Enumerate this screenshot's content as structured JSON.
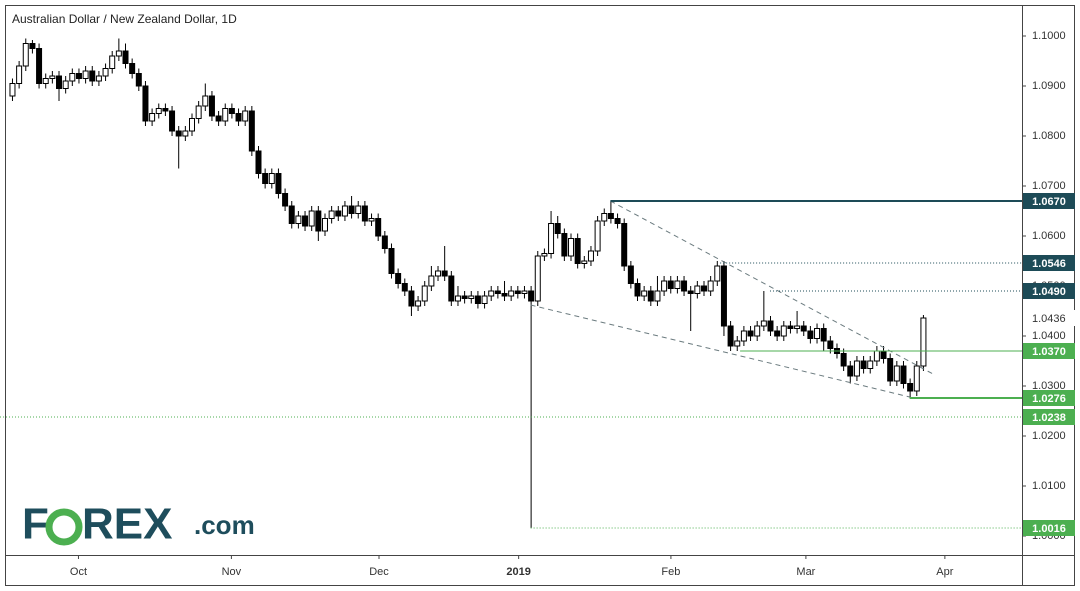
{
  "chart_data": {
    "type": "candlestick",
    "title": "Australian Dollar / New Zealand Dollar, 1D",
    "brand": [
      "F",
      "O",
      "REX",
      ".com"
    ],
    "xlim": [
      -1.8,
      151.9
    ],
    "xticks": [
      {
        "value": 10,
        "label": "Oct"
      },
      {
        "value": 33,
        "label": "Nov"
      },
      {
        "value": 55.2,
        "label": "Dec"
      },
      {
        "value": 76.2,
        "label": "2019"
      },
      {
        "value": 99.1,
        "label": "Feb"
      },
      {
        "value": 119.4,
        "label": "Mar"
      },
      {
        "value": 140.3,
        "label": "Apr"
      }
    ],
    "ylim": [
      0.9962,
      1.1062
    ],
    "yticks": [
      {
        "value": 1.1,
        "label": "1.1000"
      },
      {
        "value": 1.09,
        "label": "1.0900"
      },
      {
        "value": 1.08,
        "label": "1.0800"
      },
      {
        "value": 1.07,
        "label": "1.0700"
      },
      {
        "value": 1.06,
        "label": "1.0600"
      },
      {
        "value": 1.05,
        "label": "1.0500"
      },
      {
        "value": 1.04,
        "label": "1.0400"
      },
      {
        "value": 1.03,
        "label": "1.0300"
      },
      {
        "value": 1.02,
        "label": "1.0200"
      },
      {
        "value": 1.01,
        "label": "1.0100"
      },
      {
        "value": 1.0,
        "label": "1.0000"
      }
    ],
    "up_color": "#ffffff",
    "down_color": "#000000",
    "open": [
      1.088,
      1.0905,
      1.094,
      1.0985,
      1.0975,
      1.0905,
      1.0915,
      1.092,
      1.0895,
      1.091,
      1.0925,
      1.0915,
      1.093,
      1.091,
      1.092,
      1.0935,
      1.096,
      1.097,
      1.0945,
      1.0925,
      1.09,
      1.083,
      1.0845,
      1.0855,
      1.085,
      1.081,
      1.08,
      1.081,
      1.0835,
      1.086,
      1.088,
      1.084,
      1.083,
      1.0855,
      1.0845,
      1.083,
      1.085,
      1.077,
      1.0725,
      1.0705,
      1.0725,
      1.0685,
      1.066,
      1.0625,
      1.064,
      1.062,
      1.065,
      1.061,
      1.0635,
      1.065,
      1.064,
      1.066,
      1.0645,
      1.066,
      1.063,
      1.0635,
      1.06,
      1.0575,
      1.0525,
      1.0505,
      1.049,
      1.046,
      1.047,
      1.05,
      1.052,
      1.053,
      1.052,
      1.047,
      1.048,
      1.0475,
      1.048,
      1.0465,
      1.048,
      1.049,
      1.0485,
      1.048,
      1.049,
      1.0485,
      1.049,
      1.047,
      1.056,
      1.0565,
      1.0625,
      1.0605,
      1.056,
      1.0595,
      1.0545,
      1.055,
      1.057,
      1.063,
      1.0645,
      1.0635,
      1.0625,
      1.054,
      1.0505,
      1.048,
      1.049,
      1.047,
      1.049,
      1.051,
      1.0495,
      1.051,
      1.049,
      1.0485,
      1.05,
      1.049,
      1.051,
      1.054,
      1.042,
      1.038,
      1.039,
      1.041,
      1.04,
      1.042,
      1.043,
      1.041,
      1.04,
      1.042,
      1.0415,
      1.042,
      1.041,
      1.0395,
      1.0415,
      1.039,
      1.0375,
      1.0365,
      1.034,
      1.032,
      1.035,
      1.0335,
      1.035,
      1.037,
      1.0355,
      1.031,
      1.034,
      1.0305,
      1.029,
      1.034
    ],
    "high": [
      1.0915,
      1.095,
      1.0995,
      1.0992,
      1.0985,
      1.0925,
      1.093,
      1.093,
      1.092,
      1.0935,
      1.0935,
      1.094,
      1.094,
      1.093,
      1.0945,
      1.097,
      1.0995,
      1.0985,
      1.0955,
      1.0935,
      1.091,
      1.0855,
      1.0865,
      1.0865,
      1.086,
      1.082,
      1.082,
      1.0845,
      1.087,
      1.0905,
      1.089,
      1.085,
      1.0865,
      1.0865,
      1.0855,
      1.086,
      1.086,
      1.078,
      1.0735,
      1.0735,
      1.0735,
      1.0695,
      1.067,
      1.065,
      1.065,
      1.066,
      1.066,
      1.0645,
      1.066,
      1.066,
      1.067,
      1.068,
      1.067,
      1.067,
      1.0645,
      1.0645,
      1.061,
      1.0585,
      1.0535,
      1.0515,
      1.05,
      1.048,
      1.051,
      1.054,
      1.054,
      1.058,
      1.053,
      1.05,
      1.049,
      1.049,
      1.049,
      1.049,
      1.05,
      1.05,
      1.051,
      1.05,
      1.05,
      1.05,
      1.05,
      1.057,
      1.0575,
      1.065,
      1.064,
      1.0615,
      1.0605,
      1.0605,
      1.056,
      1.058,
      1.064,
      1.0655,
      1.067,
      1.0645,
      1.0635,
      1.055,
      1.0515,
      1.05,
      1.05,
      1.052,
      1.052,
      1.052,
      1.052,
      1.052,
      1.05,
      1.051,
      1.051,
      1.052,
      1.055,
      1.055,
      1.043,
      1.04,
      1.042,
      1.042,
      1.043,
      1.049,
      1.044,
      1.042,
      1.043,
      1.043,
      1.045,
      1.043,
      1.042,
      1.0425,
      1.0425,
      1.04,
      1.0385,
      1.0375,
      1.035,
      1.036,
      1.036,
      1.036,
      1.038,
      1.038,
      1.0365,
      1.035,
      1.035,
      1.0315,
      1.035,
      1.0442
    ],
    "low": [
      1.087,
      1.0895,
      1.093,
      1.0965,
      1.0895,
      1.0895,
      1.0905,
      1.087,
      1.0885,
      1.09,
      1.0905,
      1.0905,
      1.09,
      1.09,
      1.091,
      1.0925,
      1.095,
      1.0935,
      1.0915,
      1.089,
      1.082,
      1.082,
      1.0835,
      1.084,
      1.08,
      1.0735,
      1.079,
      1.08,
      1.0825,
      1.085,
      1.083,
      1.082,
      1.082,
      1.0835,
      1.082,
      1.082,
      1.076,
      1.0715,
      1.0695,
      1.0695,
      1.0675,
      1.065,
      1.0615,
      1.0615,
      1.061,
      1.061,
      1.059,
      1.06,
      1.0625,
      1.063,
      1.063,
      1.0635,
      1.0635,
      1.062,
      1.062,
      1.059,
      1.0565,
      1.0515,
      1.0495,
      1.048,
      1.044,
      1.045,
      1.046,
      1.049,
      1.051,
      1.051,
      1.046,
      1.046,
      1.0465,
      1.0465,
      1.0455,
      1.0455,
      1.047,
      1.0475,
      1.047,
      1.047,
      1.0475,
      1.0475,
      1.0016,
      1.046,
      1.055,
      1.0555,
      1.0595,
      1.055,
      1.055,
      1.0535,
      1.0535,
      1.054,
      1.056,
      1.062,
      1.0625,
      1.0615,
      1.053,
      1.0495,
      1.047,
      1.047,
      1.046,
      1.046,
      1.048,
      1.0485,
      1.0485,
      1.048,
      1.041,
      1.0475,
      1.048,
      1.048,
      1.05,
      1.04,
      1.037,
      1.037,
      1.038,
      1.039,
      1.039,
      1.041,
      1.04,
      1.039,
      1.039,
      1.0405,
      1.0405,
      1.04,
      1.0385,
      1.0385,
      1.037,
      1.0365,
      1.0355,
      1.033,
      1.0305,
      1.031,
      1.0325,
      1.0325,
      1.034,
      1.0345,
      1.03,
      1.03,
      1.0295,
      1.0276,
      1.028,
      1.033
    ],
    "close": [
      1.0905,
      1.094,
      1.0985,
      1.0975,
      1.0905,
      1.0915,
      1.092,
      1.0895,
      1.091,
      1.0925,
      1.0915,
      1.093,
      1.091,
      1.092,
      1.0935,
      1.096,
      1.097,
      1.0945,
      1.0925,
      1.09,
      1.083,
      1.0845,
      1.0855,
      1.085,
      1.081,
      1.08,
      1.081,
      1.0835,
      1.086,
      1.088,
      1.084,
      1.083,
      1.0855,
      1.0845,
      1.083,
      1.085,
      1.077,
      1.0725,
      1.0705,
      1.0725,
      1.0685,
      1.066,
      1.0625,
      1.064,
      1.062,
      1.065,
      1.061,
      1.0635,
      1.065,
      1.064,
      1.066,
      1.0645,
      1.066,
      1.063,
      1.0635,
      1.06,
      1.0575,
      1.0525,
      1.0505,
      1.049,
      1.046,
      1.047,
      1.05,
      1.052,
      1.053,
      1.052,
      1.047,
      1.048,
      1.0475,
      1.048,
      1.0465,
      1.048,
      1.049,
      1.0485,
      1.048,
      1.049,
      1.0485,
      1.049,
      1.047,
      1.056,
      1.0565,
      1.0625,
      1.0605,
      1.056,
      1.0595,
      1.0545,
      1.055,
      1.057,
      1.063,
      1.0645,
      1.0635,
      1.0625,
      1.054,
      1.0505,
      1.048,
      1.049,
      1.047,
      1.049,
      1.051,
      1.0495,
      1.051,
      1.049,
      1.0485,
      1.05,
      1.049,
      1.051,
      1.054,
      1.042,
      1.038,
      1.039,
      1.041,
      1.04,
      1.042,
      1.043,
      1.041,
      1.04,
      1.042,
      1.0415,
      1.042,
      1.041,
      1.0395,
      1.0415,
      1.039,
      1.0375,
      1.0365,
      1.034,
      1.032,
      1.035,
      1.0335,
      1.035,
      1.037,
      1.0355,
      1.031,
      1.034,
      1.0305,
      1.029,
      1.034,
      1.0436
    ],
    "levels": [
      {
        "value": 1.067,
        "label": "1.0670",
        "color": "#1d4b57",
        "style": "solid",
        "start": 90
      },
      {
        "value": 1.0546,
        "label": "1.0546",
        "color": "#1d4b57",
        "style": "dotted",
        "start": 106.5
      },
      {
        "value": 1.049,
        "label": "1.0490",
        "color": "#1d4b57",
        "style": "dotted",
        "start": 114
      },
      {
        "value": 1.037,
        "label": "1.0370",
        "color": "#4caf50",
        "style": "solid",
        "start": 109.5
      },
      {
        "value": 1.0276,
        "label": "1.0276",
        "color": "#4caf50",
        "style": "solid",
        "start": 135
      },
      {
        "value": 1.0238,
        "label": "1.0238",
        "color": "#4caf50",
        "style": "dotted",
        "start": -1.8
      },
      {
        "value": 1.0016,
        "label": "1.0016",
        "color": "#4caf50",
        "style": "dotted",
        "start": 78
      }
    ],
    "trendlines": [
      {
        "x": [
          90,
          138.8
        ],
        "y": [
          1.067,
          1.0322
        ],
        "color": "#6b7b7f"
      },
      {
        "x": [
          78,
          135
        ],
        "y": [
          1.0462,
          1.0278
        ],
        "color": "#6b7b7f"
      }
    ]
  }
}
